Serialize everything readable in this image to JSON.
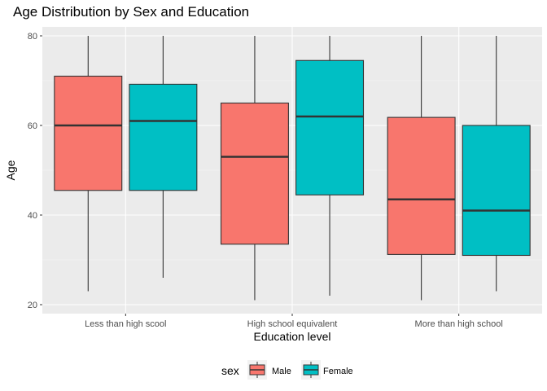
{
  "chart_data": {
    "type": "boxplot",
    "title": "Age Distribution by Sex and Education",
    "xlabel": "Education level",
    "ylabel": "Age",
    "ylim": [
      18,
      82
    ],
    "yticks": [
      20,
      40,
      60,
      80
    ],
    "grid": true,
    "legend_position": "bottom",
    "legend_title": "sex",
    "categories": [
      "Less than high scool",
      "High school equivalent",
      "More than high school"
    ],
    "series": [
      {
        "name": "Male",
        "color": "#F8766D",
        "boxes": [
          {
            "min": 23,
            "q1": 45.5,
            "median": 60,
            "q3": 71,
            "max": 80
          },
          {
            "min": 21,
            "q1": 33.5,
            "median": 53,
            "q3": 65,
            "max": 80
          },
          {
            "min": 21,
            "q1": 31.2,
            "median": 43.5,
            "q3": 61.8,
            "max": 80
          }
        ]
      },
      {
        "name": "Female",
        "color": "#00BFC4",
        "boxes": [
          {
            "min": 26,
            "q1": 45.5,
            "median": 61,
            "q3": 69.2,
            "max": 80
          },
          {
            "min": 22,
            "q1": 44.5,
            "median": 62,
            "q3": 74.5,
            "max": 80
          },
          {
            "min": 23,
            "q1": 31,
            "median": 41,
            "q3": 60,
            "max": 80
          }
        ]
      }
    ]
  }
}
